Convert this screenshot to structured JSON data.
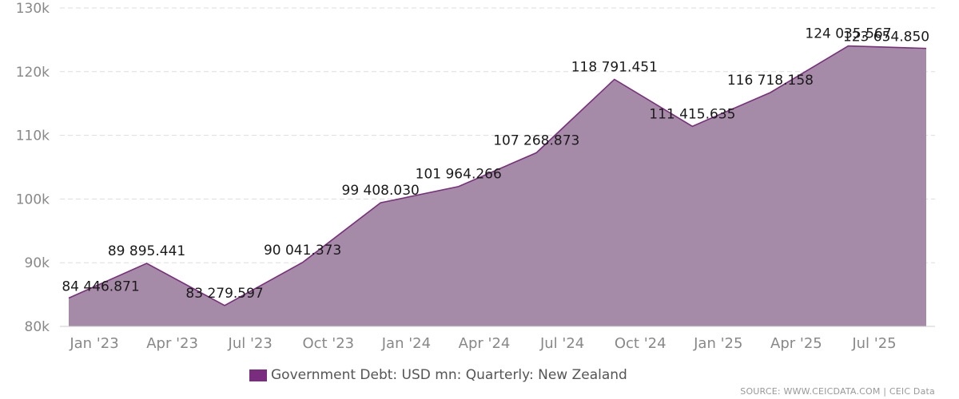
{
  "chart_data": {
    "type": "area",
    "x": [
      "2022-12",
      "2023-03",
      "2023-06",
      "2023-09",
      "2023-12",
      "2024-03",
      "2024-06",
      "2024-09",
      "2024-12",
      "2025-03",
      "2025-06",
      "2025-09"
    ],
    "xticks": [
      "Jan '23",
      "Apr '23",
      "Jul '23",
      "Oct '23",
      "Jan '24",
      "Apr '24",
      "Jul '24",
      "Oct '24",
      "Jan '25",
      "Apr '25",
      "Jul '25"
    ],
    "series": [
      {
        "name": "Government Debt: USD mn: Quarterly: New Zealand",
        "values": [
          84446.871,
          89895.441,
          83279.597,
          90041.373,
          99408.03,
          101964.266,
          107268.873,
          118791.451,
          111415.635,
          116718.158,
          124035.567,
          123654.85
        ],
        "labels": [
          "84 446.871",
          "89 895.441",
          "83 279.597",
          "90 041.373",
          "99 408.030",
          "101 964.266",
          "107 268.873",
          "118 791.451",
          "111 415.635",
          "116 718.158",
          "124 035.567",
          "123 654.850"
        ]
      }
    ],
    "yticks": [
      "80k",
      "90k",
      "100k",
      "110k",
      "120k",
      "130k"
    ],
    "ylim": [
      80000,
      130000
    ],
    "grid": true,
    "legend_position": "bottom-center",
    "title": "",
    "xlabel": "",
    "ylabel": ""
  },
  "colors": {
    "fill": "#a68ba9",
    "line": "#7a2f7d",
    "legend_swatch": "#7a2d7e",
    "grid": "#dddddd",
    "axis_text": "#888888"
  },
  "source": "SOURCE: WWW.CEICDATA.COM | CEIC Data"
}
